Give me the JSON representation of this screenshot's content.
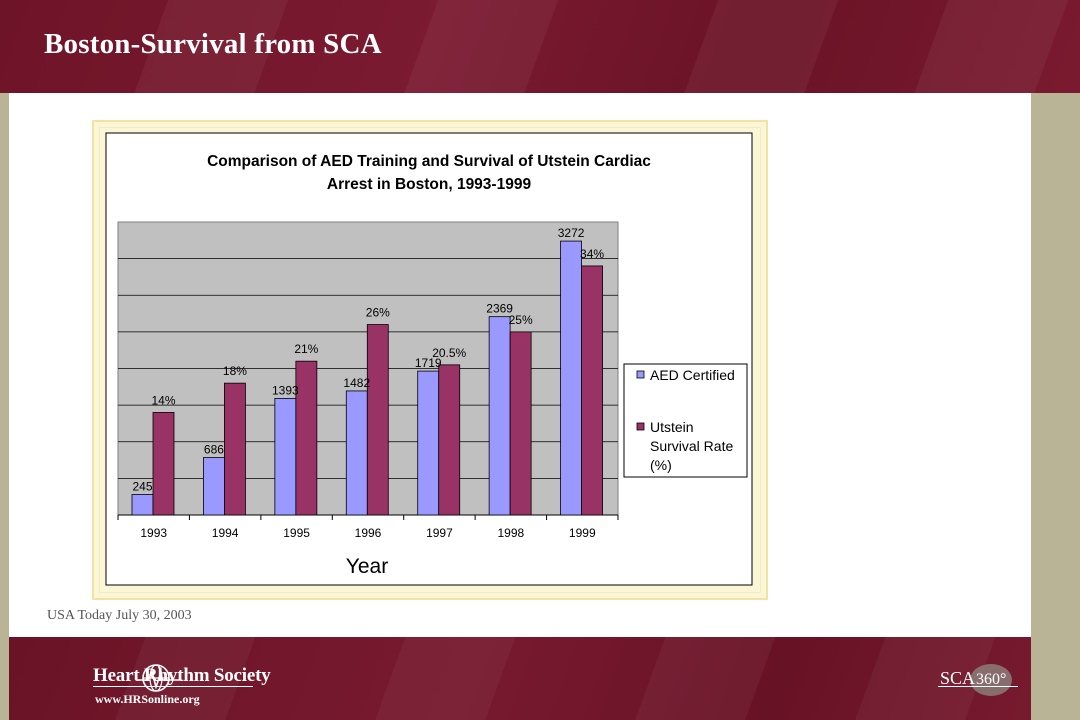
{
  "slide": {
    "title": "Boston-Survival from SCA",
    "source": "USA Today July 30, 2003"
  },
  "footer": {
    "org_name": "Heart Rhythm Society",
    "url": "www.HRSonline.org",
    "brand_text": "SCA",
    "brand_number": "360°"
  },
  "colors": {
    "header_bg": "#6e1428",
    "series_aed": "#9999ff",
    "series_survival": "#993366",
    "plot_bg": "#c0c0c0"
  },
  "chart_data": {
    "type": "bar",
    "title_line1": "Comparison of AED Training and Survival of Utstein Cardiac",
    "title_line2": "Arrest in Boston, 1993-1999",
    "xlabel": "Year",
    "ylabel": "",
    "categories": [
      "1993",
      "1994",
      "1995",
      "1996",
      "1997",
      "1998",
      "1999"
    ],
    "series": [
      {
        "name": "AED Certified",
        "values": [
          245,
          686,
          1393,
          1482,
          1719,
          2369,
          3272
        ],
        "labels": [
          "245",
          "686",
          "1393",
          "1482",
          "1719",
          "2369",
          "3272"
        ]
      },
      {
        "name": "Utstein Survival Rate (%)",
        "legend_lines": [
          "Utstein",
          "Survival Rate",
          "(%)"
        ],
        "values": [
          14,
          18,
          21,
          26,
          20.5,
          25,
          34
        ],
        "labels": [
          "14%",
          "18%",
          "21%",
          "26%",
          "20.5%",
          "25%",
          "34%"
        ]
      }
    ],
    "grid": true,
    "legend": "right"
  }
}
